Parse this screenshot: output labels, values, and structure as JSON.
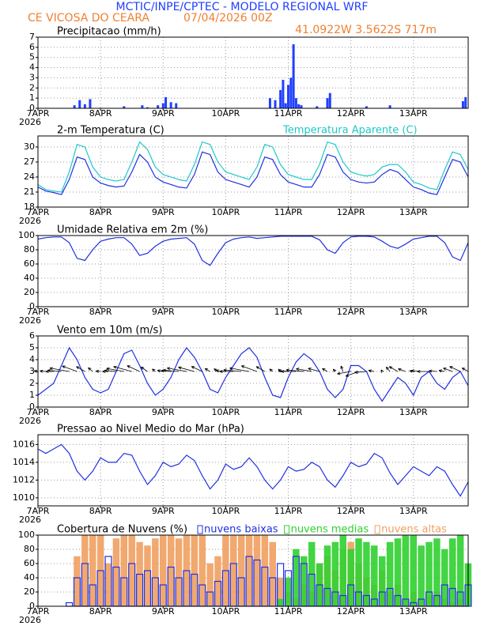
{
  "header": {
    "title": "MCTIC/INPE/CPTEC - MODELO REGIONAL WRF",
    "location": "CE VICOSA DO CEARA",
    "datetime": "07/04/2026 00Z",
    "coords": "41.0922W 3.5622S 717m"
  },
  "chart_data": [
    {
      "type": "bar",
      "title": "Precipitacao (mm/h)",
      "color": "#2040ff",
      "x": [
        14,
        16,
        18,
        20,
        33,
        40,
        42,
        46,
        48,
        49,
        51,
        53,
        89,
        91,
        93,
        94,
        95,
        96,
        97,
        98,
        99,
        100,
        101,
        107,
        111,
        112,
        126,
        135,
        163,
        164
      ],
      "values": [
        0.3,
        0.8,
        0.4,
        0.9,
        0.2,
        0.3,
        0.1,
        0.3,
        0.5,
        1.1,
        0.6,
        0.5,
        1.0,
        0.8,
        1.8,
        2.8,
        0.5,
        2.3,
        3.0,
        6.3,
        1.0,
        0.4,
        0.3,
        0.2,
        1.0,
        1.5,
        0.2,
        0.3,
        0.7,
        1.1
      ],
      "xlim": [
        0,
        165
      ],
      "xticks": [
        {
          "value": 0,
          "label": "7APR"
        },
        {
          "value": 24,
          "label": "8APR"
        },
        {
          "value": 48,
          "label": "9APR"
        },
        {
          "value": 72,
          "label": "10APR"
        },
        {
          "value": 96,
          "label": "11APR"
        },
        {
          "value": 120,
          "label": "12APR"
        },
        {
          "value": 144,
          "label": "13APR"
        }
      ],
      "year": "2026",
      "ylim": [
        0,
        7
      ],
      "yticks": [
        0,
        1,
        2,
        3,
        4,
        5,
        6,
        7
      ],
      "grid": true
    },
    {
      "type": "line",
      "title": "2-m Temperatura (C)",
      "x": [
        0,
        3,
        6,
        9,
        12,
        15,
        18,
        21,
        24,
        27,
        30,
        33,
        36,
        39,
        42,
        45,
        48,
        51,
        54,
        57,
        60,
        63,
        66,
        69,
        72,
        75,
        78,
        81,
        84,
        87,
        90,
        93,
        96,
        99,
        102,
        105,
        108,
        111,
        114,
        117,
        120,
        123,
        126,
        129,
        132,
        135,
        138,
        141,
        144,
        147,
        150,
        153,
        156,
        159,
        162,
        165
      ],
      "series": [
        {
          "color": "#2030e0",
          "values": [
            22.0,
            21.2,
            20.9,
            20.5,
            23.5,
            28.0,
            27.5,
            24.0,
            22.8,
            22.3,
            22.0,
            22.2,
            25.0,
            28.5,
            27.0,
            24.0,
            23.0,
            22.5,
            22.0,
            21.8,
            24.5,
            29.0,
            28.5,
            25.0,
            23.5,
            23.0,
            22.5,
            22.0,
            24.0,
            28.0,
            27.5,
            24.5,
            23.0,
            22.5,
            22.0,
            22.0,
            24.5,
            28.5,
            28.0,
            25.0,
            23.5,
            23.0,
            22.8,
            23.0,
            24.5,
            25.5,
            25.0,
            23.5,
            22.0,
            21.5,
            20.8,
            20.5,
            24.0,
            27.5,
            27.0,
            24.0
          ]
        },
        {
          "name": "Temperatura Aparente (C)",
          "color": "#20c8c8",
          "values": [
            22.5,
            21.5,
            21.2,
            21.0,
            25.0,
            30.5,
            30.0,
            26.0,
            24.0,
            23.5,
            23.2,
            23.5,
            27.0,
            31.0,
            29.5,
            26.0,
            24.5,
            24.0,
            23.5,
            23.2,
            26.5,
            31.0,
            30.5,
            27.0,
            25.0,
            24.5,
            24.0,
            23.5,
            26.0,
            30.5,
            30.0,
            26.5,
            24.5,
            24.0,
            23.5,
            23.5,
            26.5,
            31.0,
            30.5,
            27.0,
            25.0,
            24.5,
            24.2,
            24.5,
            26.0,
            26.5,
            26.5,
            25.0,
            23.0,
            22.5,
            21.8,
            21.5,
            25.5,
            29.0,
            28.5,
            25.5
          ]
        }
      ],
      "xlim": [
        0,
        165
      ],
      "xticks": [
        {
          "value": 0,
          "label": "7APR"
        },
        {
          "value": 24,
          "label": "8APR"
        },
        {
          "value": 48,
          "label": "9APR"
        },
        {
          "value": 72,
          "label": "10APR"
        },
        {
          "value": 96,
          "label": "11APR"
        },
        {
          "value": 120,
          "label": "12APR"
        },
        {
          "value": 144,
          "label": "13APR"
        }
      ],
      "year": "2026",
      "ylim": [
        18,
        32.2
      ],
      "yticks": [
        18,
        21,
        24,
        27,
        30
      ],
      "grid": true
    },
    {
      "type": "line",
      "title": "Umidade Relativa em 2m (%)",
      "x": [
        0,
        3,
        6,
        9,
        12,
        15,
        18,
        21,
        24,
        27,
        30,
        33,
        36,
        39,
        42,
        45,
        48,
        51,
        54,
        57,
        60,
        63,
        66,
        69,
        72,
        75,
        78,
        81,
        84,
        87,
        90,
        93,
        96,
        99,
        102,
        105,
        108,
        111,
        114,
        117,
        120,
        123,
        126,
        129,
        132,
        135,
        138,
        141,
        144,
        147,
        150,
        153,
        156,
        159,
        162,
        165
      ],
      "series": [
        {
          "color": "#2030e0",
          "values": [
            95,
            97,
            98,
            98,
            90,
            68,
            65,
            80,
            92,
            95,
            97,
            97,
            88,
            72,
            75,
            85,
            92,
            95,
            96,
            97,
            88,
            65,
            58,
            75,
            90,
            95,
            97,
            98,
            96,
            97,
            98,
            99,
            99,
            99,
            99,
            99,
            94,
            80,
            75,
            90,
            98,
            99,
            99,
            98,
            92,
            85,
            82,
            88,
            95,
            97,
            99,
            99,
            90,
            70,
            65,
            90
          ]
        }
      ],
      "xlim": [
        0,
        165
      ],
      "xticks": [
        {
          "value": 0,
          "label": "7APR"
        },
        {
          "value": 24,
          "label": "8APR"
        },
        {
          "value": 48,
          "label": "9APR"
        },
        {
          "value": 72,
          "label": "10APR"
        },
        {
          "value": 96,
          "label": "11APR"
        },
        {
          "value": 120,
          "label": "12APR"
        },
        {
          "value": 144,
          "label": "13APR"
        }
      ],
      "year": "2026",
      "ylim": [
        0,
        100
      ],
      "yticks": [
        0,
        20,
        40,
        60,
        80,
        100
      ],
      "grid": true
    },
    {
      "type": "line",
      "title": "Vento em 10m (m/s)",
      "x": [
        0,
        3,
        6,
        9,
        12,
        15,
        18,
        21,
        24,
        27,
        30,
        33,
        36,
        39,
        42,
        45,
        48,
        51,
        54,
        57,
        60,
        63,
        66,
        69,
        72,
        75,
        78,
        81,
        84,
        87,
        90,
        93,
        96,
        99,
        102,
        105,
        108,
        111,
        114,
        117,
        120,
        123,
        126,
        129,
        132,
        135,
        138,
        141,
        144,
        147,
        150,
        153,
        156,
        159,
        162,
        165
      ],
      "series": [
        {
          "color": "#2030e0",
          "values": [
            1.0,
            1.5,
            2.0,
            3.5,
            5.0,
            4.0,
            2.5,
            1.5,
            1.2,
            1.5,
            3.0,
            4.5,
            4.8,
            3.5,
            2.0,
            1.0,
            1.5,
            2.5,
            4.0,
            5.0,
            4.2,
            3.0,
            1.5,
            1.2,
            2.5,
            3.5,
            4.5,
            5.0,
            4.2,
            2.5,
            1.0,
            0.8,
            2.5,
            3.8,
            4.5,
            4.0,
            3.0,
            1.5,
            0.8,
            1.5,
            3.5,
            3.5,
            3.0,
            1.5,
            0.5,
            1.5,
            2.5,
            2.0,
            1.0,
            2.5,
            3.0,
            2.0,
            1.5,
            2.5,
            3.0,
            1.8
          ]
        }
      ],
      "directions": [
        100,
        95,
        90,
        95,
        100,
        110,
        120,
        130,
        95,
        90,
        95,
        100,
        105,
        115,
        125,
        130,
        100,
        95,
        95,
        100,
        105,
        115,
        120,
        125,
        95,
        90,
        95,
        100,
        110,
        120,
        130,
        140,
        95,
        90,
        95,
        100,
        105,
        120,
        140,
        160,
        80,
        70,
        85,
        100,
        150,
        140,
        120,
        110,
        100,
        95,
        90,
        95,
        100,
        110,
        115,
        120
      ],
      "xlim": [
        0,
        165
      ],
      "xticks": [
        {
          "value": 0,
          "label": "7APR"
        },
        {
          "value": 24,
          "label": "8APR"
        },
        {
          "value": 48,
          "label": "9APR"
        },
        {
          "value": 72,
          "label": "10APR"
        },
        {
          "value": 96,
          "label": "11APR"
        },
        {
          "value": 120,
          "label": "12APR"
        },
        {
          "value": 144,
          "label": "13APR"
        }
      ],
      "year": "2026",
      "ylim": [
        0,
        6
      ],
      "yticks": [
        0,
        1,
        2,
        3,
        4,
        5,
        6
      ],
      "grid": true
    },
    {
      "type": "line",
      "title": "Pressao ao Nivel Medio do Mar (hPa)",
      "x": [
        0,
        3,
        6,
        9,
        12,
        15,
        18,
        21,
        24,
        27,
        30,
        33,
        36,
        39,
        42,
        45,
        48,
        51,
        54,
        57,
        60,
        63,
        66,
        69,
        72,
        75,
        78,
        81,
        84,
        87,
        90,
        93,
        96,
        99,
        102,
        105,
        108,
        111,
        114,
        117,
        120,
        123,
        126,
        129,
        132,
        135,
        138,
        141,
        144,
        147,
        150,
        153,
        156,
        159,
        162,
        165
      ],
      "series": [
        {
          "color": "#2030e0",
          "values": [
            1015.5,
            1015.0,
            1015.5,
            1016.0,
            1015.0,
            1013.0,
            1012.0,
            1013.0,
            1014.5,
            1014.0,
            1014.0,
            1015.0,
            1014.8,
            1013.0,
            1011.5,
            1012.5,
            1014.0,
            1013.5,
            1013.8,
            1014.8,
            1014.2,
            1012.5,
            1011.0,
            1012.0,
            1013.8,
            1013.2,
            1013.5,
            1014.5,
            1013.5,
            1012.0,
            1011.0,
            1012.0,
            1013.5,
            1013.0,
            1013.2,
            1014.0,
            1013.5,
            1012.0,
            1011.2,
            1012.5,
            1014.0,
            1013.5,
            1013.8,
            1015.0,
            1014.5,
            1012.8,
            1011.5,
            1012.5,
            1013.5,
            1013.0,
            1012.5,
            1013.5,
            1013.0,
            1011.5,
            1010.2,
            1011.8
          ]
        }
      ],
      "xlim": [
        0,
        165
      ],
      "xticks": [
        {
          "value": 0,
          "label": "7APR"
        },
        {
          "value": 24,
          "label": "8APR"
        },
        {
          "value": 48,
          "label": "9APR"
        },
        {
          "value": 72,
          "label": "10APR"
        },
        {
          "value": 96,
          "label": "11APR"
        },
        {
          "value": 120,
          "label": "12APR"
        },
        {
          "value": 144,
          "label": "13APR"
        }
      ],
      "year": "2026",
      "ylim": [
        1009.1,
        1017.1
      ],
      "yticks": [
        1010,
        1012,
        1014,
        1016
      ],
      "grid": true
    },
    {
      "type": "bar",
      "title": "Cobertura de Nuvens (%)",
      "x": [
        0,
        3,
        6,
        9,
        12,
        15,
        18,
        21,
        24,
        27,
        30,
        33,
        36,
        39,
        42,
        45,
        48,
        51,
        54,
        57,
        60,
        63,
        66,
        69,
        72,
        75,
        78,
        81,
        84,
        87,
        90,
        93,
        96,
        99,
        102,
        105,
        108,
        111,
        114,
        117,
        120,
        123,
        126,
        129,
        132,
        135,
        138,
        141,
        144,
        147,
        150,
        153,
        156,
        159,
        162,
        165
      ],
      "series": [
        {
          "name": "nuvens altas",
          "color": "#f0a060",
          "values": [
            0,
            0,
            0,
            0,
            0,
            70,
            100,
            100,
            100,
            60,
            95,
            100,
            100,
            90,
            85,
            95,
            100,
            100,
            95,
            100,
            100,
            100,
            60,
            70,
            100,
            100,
            100,
            100,
            100,
            100,
            90,
            40,
            20,
            10,
            30,
            20,
            60,
            70,
            50,
            80,
            90,
            60,
            40,
            30,
            50,
            20,
            30,
            10,
            20,
            10,
            15,
            20,
            10,
            5,
            10,
            0
          ]
        },
        {
          "name": "nuvens medias",
          "color": "#30d030",
          "values": [
            0,
            0,
            0,
            0,
            0,
            0,
            0,
            0,
            0,
            0,
            0,
            0,
            0,
            0,
            0,
            0,
            0,
            0,
            0,
            0,
            0,
            0,
            0,
            0,
            0,
            0,
            0,
            0,
            0,
            0,
            0,
            10,
            40,
            80,
            70,
            90,
            60,
            85,
            90,
            100,
            80,
            95,
            90,
            85,
            70,
            90,
            95,
            100,
            100,
            85,
            90,
            95,
            80,
            95,
            100,
            60
          ]
        },
        {
          "name": "nuvens baixas",
          "color": "#2030e0",
          "values": [
            0,
            0,
            0,
            0,
            5,
            40,
            60,
            30,
            50,
            70,
            55,
            40,
            60,
            45,
            50,
            40,
            30,
            55,
            40,
            50,
            45,
            30,
            20,
            35,
            50,
            60,
            40,
            70,
            65,
            55,
            40,
            60,
            50,
            70,
            60,
            45,
            30,
            25,
            20,
            15,
            30,
            20,
            15,
            10,
            20,
            25,
            15,
            10,
            5,
            10,
            20,
            15,
            30,
            25,
            20,
            30
          ]
        }
      ],
      "xlim": [
        0,
        165
      ],
      "xticks": [
        {
          "value": 0,
          "label": "7APR"
        },
        {
          "value": 24,
          "label": "8APR"
        },
        {
          "value": 48,
          "label": "9APR"
        },
        {
          "value": 72,
          "label": "10APR"
        },
        {
          "value": 96,
          "label": "11APR"
        },
        {
          "value": 120,
          "label": "12APR"
        },
        {
          "value": 144,
          "label": "13APR"
        }
      ],
      "year": "2026",
      "ylim": [
        0,
        100
      ],
      "yticks": [
        0,
        20,
        40,
        60,
        80,
        100
      ],
      "grid": true
    }
  ]
}
